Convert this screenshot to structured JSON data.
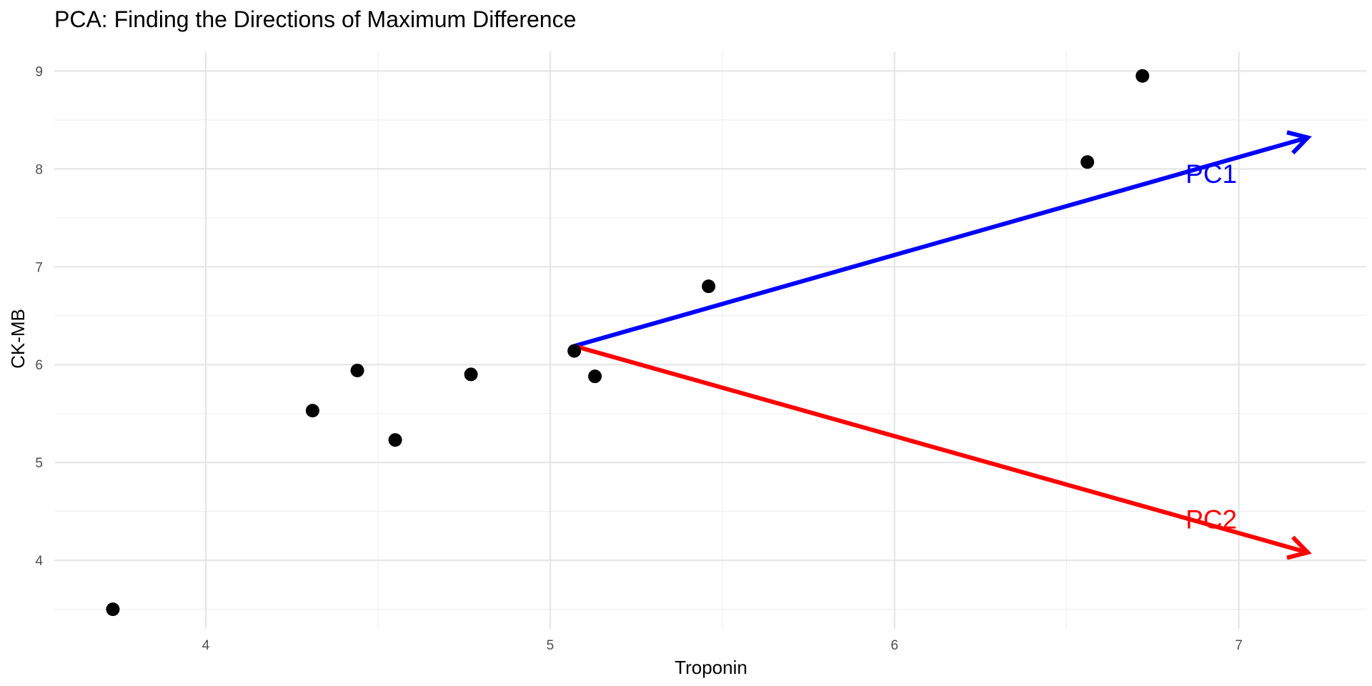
{
  "chart_data": {
    "type": "scatter",
    "title": "PCA: Finding the Directions of Maximum Difference",
    "xlabel": "Troponin",
    "ylabel": "CK-MB",
    "xlim": [
      3.56,
      7.37
    ],
    "ylim": [
      3.3,
      9.2
    ],
    "x_ticks": [
      4,
      5,
      6,
      7
    ],
    "y_ticks": [
      4,
      5,
      6,
      7,
      8,
      9
    ],
    "grid": true,
    "points": [
      {
        "x": 3.73,
        "y": 3.5
      },
      {
        "x": 4.31,
        "y": 5.53
      },
      {
        "x": 4.44,
        "y": 5.94
      },
      {
        "x": 4.55,
        "y": 5.23
      },
      {
        "x": 4.77,
        "y": 5.9
      },
      {
        "x": 5.07,
        "y": 6.14
      },
      {
        "x": 5.13,
        "y": 5.88
      },
      {
        "x": 5.46,
        "y": 6.8
      },
      {
        "x": 6.56,
        "y": 8.07
      },
      {
        "x": 6.72,
        "y": 8.95
      }
    ],
    "point_color": "#000000",
    "arrows": [
      {
        "label": "PC1",
        "color": "#0000ff",
        "from": [
          5.07,
          6.19
        ],
        "to": [
          7.2,
          8.32
        ],
        "label_at": [
          6.92,
          7.95
        ]
      },
      {
        "label": "PC2",
        "color": "#ff0000",
        "from": [
          5.07,
          6.19
        ],
        "to": [
          7.2,
          4.08
        ],
        "label_at": [
          6.92,
          4.42
        ]
      }
    ]
  }
}
